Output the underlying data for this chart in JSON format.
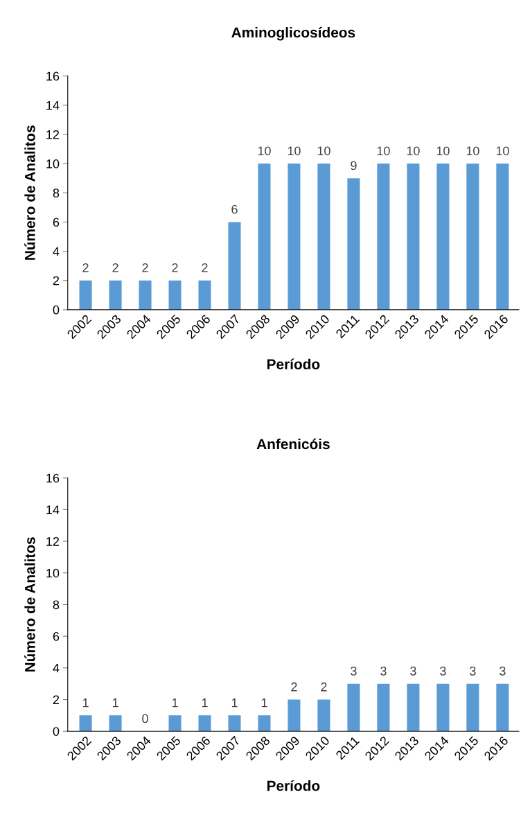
{
  "chart_data": [
    {
      "type": "bar",
      "title": "Aminoglicosídeos",
      "xlabel": "Período",
      "ylabel": "Número de Analitos",
      "categories": [
        "2002",
        "2003",
        "2004",
        "2005",
        "2006",
        "2007",
        "2008",
        "2009",
        "2010",
        "2011",
        "2012",
        "2013",
        "2014",
        "2015",
        "2016"
      ],
      "values": [
        2,
        2,
        2,
        2,
        2,
        6,
        10,
        10,
        10,
        9,
        10,
        10,
        10,
        10,
        10
      ],
      "color": "#5b9bd5",
      "ylim": [
        0,
        16
      ],
      "yticks": [
        0,
        2,
        4,
        6,
        8,
        10,
        12,
        14,
        16
      ],
      "data_labels": true,
      "grid": false,
      "legend": false
    },
    {
      "type": "bar",
      "title": "Anfenicóis",
      "xlabel": "Período",
      "ylabel": "Número de Analitos",
      "categories": [
        "2002",
        "2003",
        "2004",
        "2005",
        "2006",
        "2007",
        "2008",
        "2009",
        "2010",
        "2011",
        "2012",
        "2013",
        "2014",
        "2015",
        "2016"
      ],
      "values": [
        1,
        1,
        0,
        1,
        1,
        1,
        1,
        2,
        2,
        3,
        3,
        3,
        3,
        3,
        3
      ],
      "color": "#5b9bd5",
      "ylim": [
        0,
        16
      ],
      "yticks": [
        0,
        2,
        4,
        6,
        8,
        10,
        12,
        14,
        16
      ],
      "data_labels": true,
      "grid": false,
      "legend": false
    }
  ]
}
